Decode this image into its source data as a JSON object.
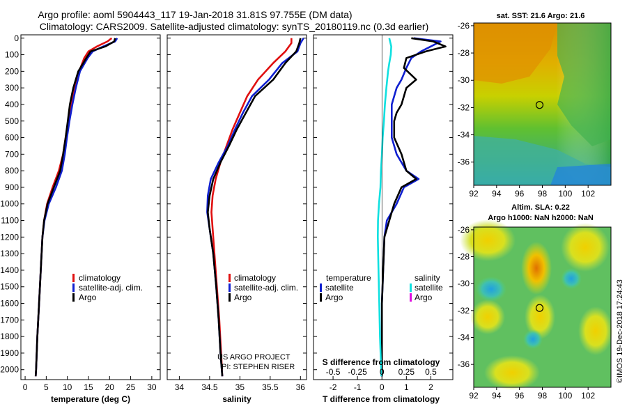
{
  "header": {
    "line1": "Argo profile: aoml 5904443_117 19-Jan-2018 31.81S 97.755E (DM data)",
    "line2": "Climatology: CARS2009. Satellite-adjusted climatology: synTS_20180119.nc (0.3d earlier)"
  },
  "colors": {
    "climatology": "#e01010",
    "satellite_adj": "#1020d0",
    "argo": "#000000",
    "satellite_salinity": "#10e0e0",
    "argo_salinity": "#e010e0"
  },
  "chart_data": [
    {
      "type": "line",
      "name": "temperature-profile",
      "xlabel": "temperature (deg C)",
      "xlim": [
        -1,
        32
      ],
      "ylim": [
        2060,
        -20
      ],
      "xticks": [
        0,
        5,
        10,
        15,
        20,
        25,
        30
      ],
      "yticks": [
        0,
        100,
        200,
        300,
        400,
        500,
        600,
        700,
        800,
        900,
        1000,
        1100,
        1200,
        1300,
        1400,
        1500,
        1600,
        1700,
        1800,
        1900,
        2000
      ],
      "legend": [
        "climatology",
        "satellite-adj. clim.",
        "Argo"
      ],
      "series": [
        {
          "name": "climatology",
          "depth": [
            0,
            20,
            50,
            80,
            120,
            200,
            300,
            400,
            500,
            600,
            700,
            800,
            900,
            1000,
            1100,
            1200,
            1400,
            1600,
            1800,
            2000,
            2040
          ],
          "values": [
            20.5,
            19.5,
            17.0,
            15.0,
            14.0,
            12.8,
            11.8,
            10.9,
            10.2,
            9.6,
            9.0,
            8.0,
            6.5,
            5.2,
            4.5,
            4.1,
            3.7,
            3.3,
            2.9,
            2.6,
            2.5
          ]
        },
        {
          "name": "satellite-adj. clim.",
          "depth": [
            0,
            20,
            50,
            80,
            120,
            200,
            300,
            400,
            500,
            600,
            700,
            800,
            900,
            1000,
            1100,
            1200,
            1400,
            1600,
            1800,
            2000,
            2040
          ],
          "values": [
            21.8,
            21.3,
            18.5,
            16.0,
            14.8,
            13.0,
            12.0,
            11.2,
            10.5,
            9.9,
            9.4,
            8.7,
            7.3,
            5.6,
            4.6,
            4.1,
            3.7,
            3.3,
            2.9,
            2.6,
            2.5
          ]
        },
        {
          "name": "Argo",
          "depth": [
            0,
            20,
            50,
            80,
            120,
            200,
            300,
            400,
            500,
            600,
            700,
            800,
            900,
            1000,
            1100,
            1200,
            1400,
            1600,
            1800,
            2000,
            2040
          ],
          "values": [
            21.3,
            21.1,
            19.0,
            15.5,
            14.5,
            12.6,
            11.4,
            10.6,
            10.1,
            9.6,
            9.0,
            8.3,
            6.8,
            5.3,
            4.5,
            4.1,
            3.7,
            3.3,
            2.9,
            2.6,
            2.5
          ]
        }
      ]
    },
    {
      "type": "line",
      "name": "salinity-profile",
      "xlabel": "salinity",
      "xlim": [
        33.8,
        36.1
      ],
      "ylim": [
        2060,
        -20
      ],
      "xticks": [
        34,
        34.5,
        35,
        35.5,
        36
      ],
      "xtick_labels": [
        "34",
        "34.5",
        "35",
        "35.5",
        "36"
      ],
      "legend": [
        "climatology",
        "satellite-adj. clim.",
        "Argo"
      ],
      "credit": [
        "US ARGO PROJECT",
        "PI: STEPHEN RISER"
      ],
      "series": [
        {
          "name": "climatology",
          "depth": [
            0,
            30,
            80,
            150,
            250,
            350,
            450,
            550,
            650,
            750,
            850,
            950,
            1050,
            1150,
            1300,
            1500,
            1700,
            1900,
            2040
          ],
          "values": [
            35.85,
            35.85,
            35.75,
            35.55,
            35.3,
            35.12,
            35.0,
            34.88,
            34.78,
            34.68,
            34.6,
            34.55,
            34.53,
            34.55,
            34.58,
            34.62,
            34.66,
            34.69,
            34.71
          ]
        },
        {
          "name": "satellite-adj. clim.",
          "depth": [
            0,
            30,
            80,
            150,
            250,
            350,
            450,
            550,
            650,
            750,
            850,
            950,
            1050,
            1150,
            1300,
            1500,
            1700,
            1900,
            2040
          ],
          "values": [
            36.05,
            36.0,
            35.95,
            35.7,
            35.48,
            35.2,
            35.05,
            34.92,
            34.8,
            34.65,
            34.52,
            34.47,
            34.46,
            34.5,
            34.56,
            34.61,
            34.65,
            34.68,
            34.71
          ]
        },
        {
          "name": "Argo",
          "depth": [
            0,
            30,
            80,
            150,
            250,
            350,
            450,
            550,
            650,
            750,
            850,
            950,
            1050,
            1150,
            1300,
            1500,
            1700,
            1900,
            2040
          ],
          "values": [
            36.0,
            35.98,
            35.93,
            35.75,
            35.55,
            35.25,
            35.1,
            34.95,
            34.82,
            34.68,
            34.56,
            34.5,
            34.47,
            34.5,
            34.56,
            34.61,
            34.65,
            34.68,
            34.71
          ]
        }
      ]
    },
    {
      "type": "line",
      "name": "difference-profile",
      "xlabel": "T difference from climatology",
      "xlabel_top": "S difference from climatology",
      "xlim": [
        -2.8,
        2.9
      ],
      "ylim": [
        2060,
        -20
      ],
      "xticks": [
        -2,
        -1,
        0,
        1,
        2
      ],
      "top_ticks": [
        -0.5,
        -0.25,
        0,
        0.25,
        0.5
      ],
      "top_tick_labels": [
        "-0.5",
        "-0.25",
        "0",
        "0.25",
        "0.5"
      ],
      "legend_temperature": {
        "title": "temperature",
        "items": [
          "satellite",
          "Argo"
        ]
      },
      "legend_salinity": {
        "title": "salinity",
        "items": [
          "satellite",
          "Argo"
        ]
      },
      "series": [
        {
          "name": "temperature satellite",
          "depth": [
            0,
            20,
            50,
            80,
            120,
            180,
            250,
            300,
            350,
            400,
            450,
            500,
            600,
            700,
            800,
            850,
            900,
            1000,
            1100,
            1200,
            1400,
            1600,
            1800,
            2000,
            2040
          ],
          "values": [
            1.3,
            2.4,
            2.0,
            1.6,
            1.2,
            1.0,
            0.8,
            0.6,
            0.5,
            0.4,
            0.4,
            0.4,
            0.4,
            0.6,
            1.0,
            1.5,
            0.9,
            0.6,
            0.2,
            0.1,
            0.05,
            0.0,
            0.0,
            0.0,
            0.0
          ]
        },
        {
          "name": "temperature Argo",
          "depth": [
            0,
            20,
            50,
            80,
            120,
            180,
            250,
            300,
            350,
            400,
            450,
            500,
            600,
            700,
            800,
            850,
            900,
            1000,
            1100,
            1200,
            1400,
            1600,
            1800,
            2000,
            2040
          ],
          "values": [
            1.2,
            2.1,
            2.6,
            1.8,
            1.0,
            0.9,
            1.4,
            1.0,
            0.9,
            0.8,
            0.6,
            0.5,
            0.5,
            0.8,
            1.0,
            1.4,
            0.8,
            0.5,
            0.3,
            0.1,
            0.05,
            0.0,
            0.0,
            0.0,
            0.0
          ]
        },
        {
          "name": "salinity satellite",
          "depth": [
            0,
            50,
            100,
            150,
            200,
            300,
            400,
            500,
            600,
            700,
            800,
            900,
            1000,
            1100,
            1200,
            1400,
            1600,
            1800,
            2000,
            2040
          ],
          "values": [
            0.3,
            0.38,
            0.36,
            0.3,
            0.25,
            0.18,
            0.12,
            0.08,
            0.03,
            0.0,
            -0.04,
            -0.06,
            -0.12,
            -0.16,
            -0.17,
            -0.14,
            -0.11,
            -0.08,
            -0.03,
            -0.02
          ]
        },
        {
          "name": "salinity Argo",
          "depth": [],
          "values": []
        }
      ]
    },
    {
      "type": "heatmap",
      "name": "sst-map",
      "title": "sat. SST: 21.6 Argo: 21.6",
      "xlim": [
        92,
        104
      ],
      "ylim": [
        -37.7,
        -25.8
      ],
      "xticks": [
        92,
        94,
        96,
        98,
        100,
        102
      ],
      "yticks": [
        -26,
        -28,
        -30,
        -32,
        -34,
        -36
      ],
      "marker": {
        "lon": 97.755,
        "lat": -31.81
      }
    },
    {
      "type": "heatmap",
      "name": "sla-map",
      "title": "Altim. SLA: 0.22",
      "subtitle": "Argo h1000: NaN h2000: NaN",
      "xlim": [
        92,
        104
      ],
      "ylim": [
        -37.7,
        -25.8
      ],
      "xticks": [
        92,
        94,
        96,
        98,
        100,
        102
      ],
      "yticks": [
        -26,
        -28,
        -30,
        -32,
        -34,
        -36
      ],
      "marker": {
        "lon": 97.755,
        "lat": -31.81
      }
    }
  ],
  "footer": {
    "imos_credit": "©IMOS 19-Dec-2018 17:24:43"
  }
}
